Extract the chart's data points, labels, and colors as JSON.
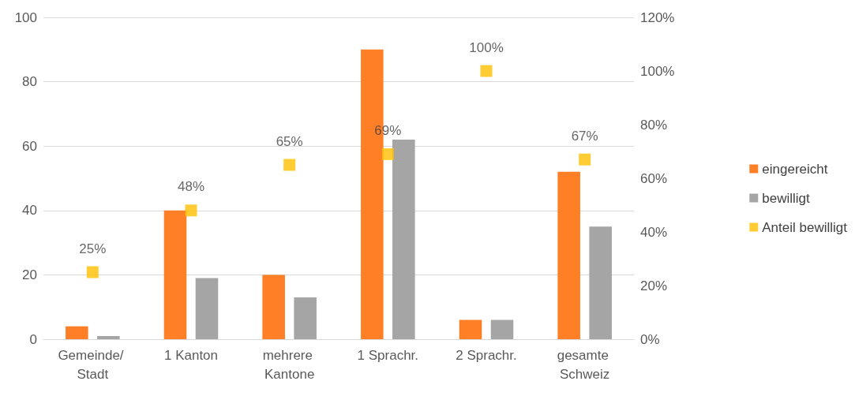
{
  "chart_data": {
    "type": "bar",
    "categories": [
      "Gemeinde/ Stadt",
      "1 Kanton",
      "mehrere Kantone",
      "1 Sprachr.",
      "2 Sprachr.",
      "gesamte Schweiz"
    ],
    "series": [
      {
        "name": "eingereicht",
        "color": "#ff7f27",
        "values": [
          4,
          40,
          20,
          90,
          6,
          52
        ]
      },
      {
        "name": "bewilligt",
        "color": "#a5a5a5",
        "values": [
          1,
          19,
          13,
          62,
          6,
          35
        ]
      },
      {
        "name": "Anteil bewilligt",
        "type": "scatter",
        "axis": "y2",
        "marker": "square",
        "color": "#ffc000",
        "values": [
          25,
          48,
          65,
          69,
          100,
          67
        ],
        "value_labels": [
          "25%",
          "48%",
          "65%",
          "69%",
          "100%",
          "67%"
        ]
      }
    ],
    "ylim": [
      0,
      100
    ],
    "yticks": [
      0,
      20,
      40,
      60,
      80,
      100
    ],
    "y2lim": [
      0,
      120
    ],
    "y2ticks": [
      {
        "value": 0,
        "label": "0%"
      },
      {
        "value": 20,
        "label": "20%"
      },
      {
        "value": 40,
        "label": "40%"
      },
      {
        "value": 60,
        "label": "60%"
      },
      {
        "value": 80,
        "label": "80%"
      },
      {
        "value": 100,
        "label": "100%"
      },
      {
        "value": 120,
        "label": "120%"
      }
    ],
    "grid": "y",
    "legend": "right"
  }
}
